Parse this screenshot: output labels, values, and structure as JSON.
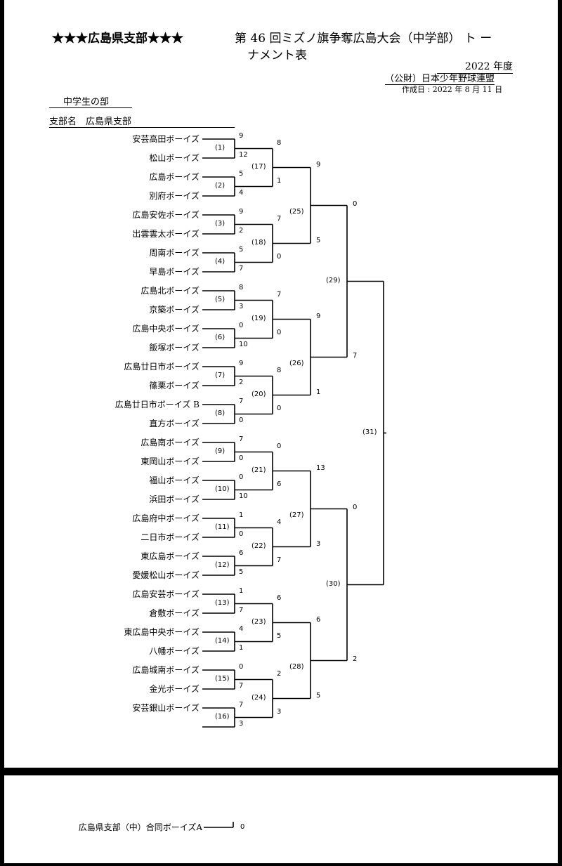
{
  "header": {
    "branch_title": "★★★広島県支部★★★",
    "tournament_title_line1": "第 46 回ミズノ旗争奪広島大会（中学部） ト ー",
    "tournament_title_line2": "ナメント表",
    "year": "2022 年度",
    "organization": "（公財）日本少年野球連盟",
    "created_date": "作成日 : 2022 年 8 月 11 日"
  },
  "division": {
    "name": "中学生の部",
    "branch_line": "支部名　広島県支部"
  },
  "teams": [
    {
      "name": "安芸高田ボーイズ",
      "score": "9"
    },
    {
      "name": "松山ボーイズ",
      "score": "12"
    },
    {
      "name": "広島ボーイズ",
      "score": "5"
    },
    {
      "name": "別府ボーイズ",
      "score": "4"
    },
    {
      "name": "広島安佐ボーイズ",
      "score": "9"
    },
    {
      "name": "出雲雲太ボーイズ",
      "score": "2"
    },
    {
      "name": "周南ボーイズ",
      "score": "5"
    },
    {
      "name": "早島ボーイズ",
      "score": "7"
    },
    {
      "name": "広島北ボーイズ",
      "score": "8"
    },
    {
      "name": "京築ボーイズ",
      "score": "3"
    },
    {
      "name": "広島中央ボーイズ",
      "score": "0"
    },
    {
      "name": "飯塚ボーイズ",
      "score": "10"
    },
    {
      "name": "広島廿日市ボーイズ",
      "score": "9"
    },
    {
      "name": "篠栗ボーイズ",
      "score": "2"
    },
    {
      "name": "広島廿日市ボーイズ B",
      "score": "7"
    },
    {
      "name": "直方ボーイズ",
      "score": "0"
    },
    {
      "name": "広島南ボーイズ",
      "score": "7"
    },
    {
      "name": "東岡山ボーイズ",
      "score": "0"
    },
    {
      "name": "福山ボーイズ",
      "score": "0"
    },
    {
      "name": "浜田ボーイズ",
      "score": "10"
    },
    {
      "name": "広島府中ボーイズ",
      "score": "1"
    },
    {
      "name": "二日市ボーイズ",
      "score": "0"
    },
    {
      "name": "東広島ボーイズ",
      "score": "6"
    },
    {
      "name": "愛媛松山ボーイズ",
      "score": "5"
    },
    {
      "name": "広島安芸ボーイズ",
      "score": "1"
    },
    {
      "name": "倉敷ボーイズ",
      "score": "7"
    },
    {
      "name": "東広島中央ボーイズ",
      "score": "4"
    },
    {
      "name": "八幡ボーイズ",
      "score": "1"
    },
    {
      "name": "広島城南ボーイズ",
      "score": "0"
    },
    {
      "name": "金光ボーイズ",
      "score": "7"
    },
    {
      "name": "安芸銀山ボーイズ",
      "score": "7"
    },
    {
      "name": "",
      "score": "3"
    }
  ],
  "round1_labels": [
    "(1)",
    "(2)",
    "(3)",
    "(4)",
    "(5)",
    "(6)",
    "(7)",
    "(8)",
    "(9)",
    "(10)",
    "(11)",
    "(12)",
    "(13)",
    "(14)",
    "(15)",
    "(16)"
  ],
  "round2": [
    {
      "label": "(17)",
      "scores": [
        "8",
        "1"
      ]
    },
    {
      "label": "(18)",
      "scores": [
        "7",
        "0"
      ]
    },
    {
      "label": "(19)",
      "scores": [
        "7",
        "0"
      ]
    },
    {
      "label": "(20)",
      "scores": [
        "8",
        "0"
      ]
    },
    {
      "label": "(21)",
      "scores": [
        "0",
        "6"
      ]
    },
    {
      "label": "(22)",
      "scores": [
        "4",
        "7"
      ]
    },
    {
      "label": "(23)",
      "scores": [
        "6",
        "5"
      ]
    },
    {
      "label": "(24)",
      "scores": [
        "2",
        "3"
      ]
    }
  ],
  "round3": [
    {
      "label": "(25)",
      "scores": [
        "9",
        "5"
      ]
    },
    {
      "label": "(26)",
      "scores": [
        "9",
        "1"
      ]
    },
    {
      "label": "(27)",
      "scores": [
        "13",
        "3"
      ]
    },
    {
      "label": "(28)",
      "scores": [
        "6",
        "5"
      ]
    }
  ],
  "round4": [
    {
      "label": "(29)",
      "scores": [
        "0",
        "7"
      ]
    },
    {
      "label": "(30)",
      "scores": [
        "0",
        "2"
      ]
    }
  ],
  "final": {
    "label": "(31)"
  },
  "extra": {
    "name": "広島県支部（中）合同ボーイズA",
    "score": "0"
  }
}
